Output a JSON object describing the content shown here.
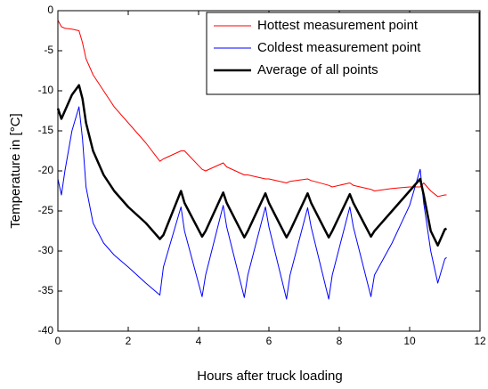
{
  "chart_data": {
    "type": "line",
    "xlabel": "Hours after truck loading",
    "ylabel": "Temperature in [°C]",
    "x": [
      0,
      0.1,
      0.2,
      0.4,
      0.6,
      0.7,
      0.8,
      1.0,
      1.3,
      1.6,
      2.0,
      2.5,
      2.9,
      3.0,
      3.5,
      3.6,
      4.1,
      4.2,
      4.7,
      4.8,
      5.3,
      5.4,
      5.9,
      6.0,
      6.5,
      6.6,
      7.1,
      7.2,
      7.7,
      7.8,
      8.3,
      8.4,
      8.9,
      9.0,
      9.5,
      10.0,
      10.3,
      10.4,
      10.6,
      10.8,
      11.0,
      11.05
    ],
    "series": [
      {
        "name": "Hottest measurement point",
        "color": "#ff0000",
        "width": 1,
        "values": [
          -1.2,
          -2,
          -2.2,
          -2.3,
          -2.5,
          -4,
          -6,
          -8,
          -10,
          -12,
          -14,
          -16.5,
          -18.8,
          -18.5,
          -17.5,
          -17.5,
          -19.8,
          -20,
          -19,
          -19.5,
          -20.5,
          -20.5,
          -21,
          -21,
          -21.5,
          -21.3,
          -21,
          -21.2,
          -21.8,
          -22,
          -21.5,
          -21.8,
          -22.3,
          -22.5,
          -22.2,
          -22,
          -22,
          -21.5,
          -22.5,
          -23.2,
          -23,
          -23
        ]
      },
      {
        "name": "Coldest measurement point",
        "color": "#0000ff",
        "width": 1,
        "values": [
          -21,
          -23,
          -20,
          -15,
          -12,
          -16,
          -22,
          -26.5,
          -29,
          -30.5,
          -32,
          -34,
          -35.5,
          -32,
          -24.5,
          -27.5,
          -35.7,
          -33,
          -24.3,
          -27,
          -35.8,
          -33,
          -24.5,
          -27,
          -36,
          -33,
          -24.6,
          -27,
          -36,
          -33,
          -24.5,
          -27,
          -35.7,
          -33,
          -29,
          -24.3,
          -19.8,
          -24,
          -30,
          -34,
          -31,
          -30.8
        ]
      },
      {
        "name": "Average of all points",
        "color": "#000000",
        "width": 2.5,
        "values": [
          -12.2,
          -13.5,
          -12.5,
          -10.5,
          -9.3,
          -11,
          -14,
          -17.5,
          -20.5,
          -22.5,
          -24.5,
          -26.5,
          -28.5,
          -28,
          -22.5,
          -24,
          -28.2,
          -27.5,
          -22.7,
          -24,
          -28.3,
          -27.5,
          -22.8,
          -24,
          -28.3,
          -27.5,
          -22.8,
          -24,
          -28.3,
          -27.5,
          -22.9,
          -24,
          -28.2,
          -27.5,
          -25,
          -22.5,
          -21,
          -23,
          -27.5,
          -29.3,
          -27.3,
          -27.2
        ]
      }
    ],
    "xlim": [
      0,
      12
    ],
    "xticks": [
      0,
      2,
      4,
      6,
      8,
      10,
      12
    ],
    "ylim": [
      -40,
      0
    ],
    "yticks": [
      -40,
      -35,
      -30,
      -25,
      -20,
      -15,
      -10,
      -5,
      0
    ],
    "grid": false,
    "legend": "upper right"
  }
}
